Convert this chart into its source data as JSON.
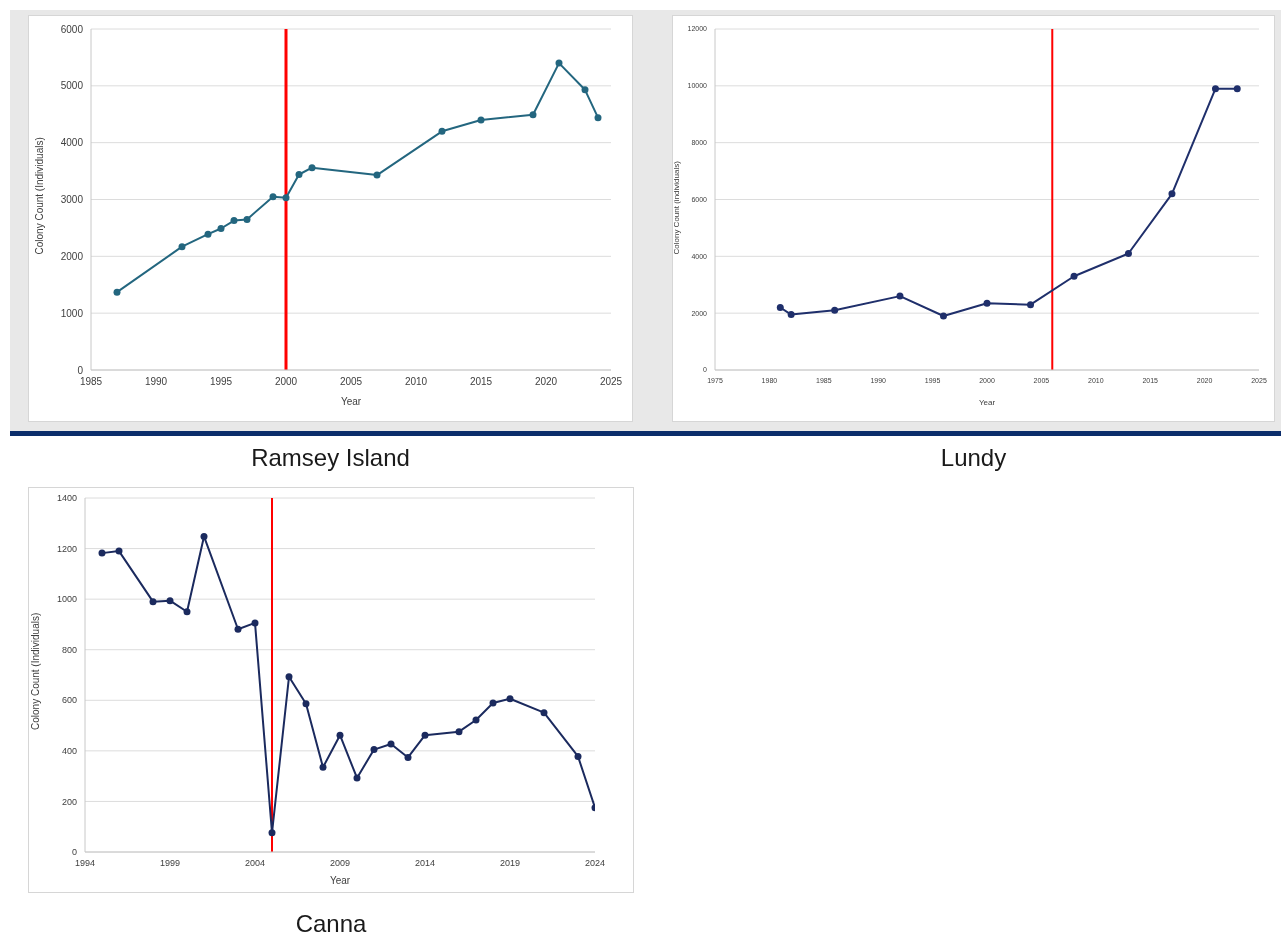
{
  "chart_data": [
    {
      "type": "line",
      "title": "Ramsey Island",
      "xlabel": "Year",
      "ylabel": "Colony Count (Individuals)",
      "marker": "circle",
      "grid": "y",
      "x": [
        1987,
        1992,
        1994,
        1995,
        1996,
        1997,
        1999,
        2000,
        2001,
        2002,
        2007,
        2012,
        2015,
        2019,
        2021,
        2023,
        2024
      ],
      "series": [
        {
          "color": "#23667f",
          "values": [
            1370,
            2170,
            2390,
            2490,
            2630,
            2650,
            3050,
            3030,
            3440,
            3560,
            3430,
            4200,
            4400,
            4490,
            5400,
            4930,
            4440
          ]
        }
      ],
      "xlim": [
        1985,
        2025
      ],
      "xticks": [
        1985,
        1990,
        1995,
        2000,
        2005,
        2010,
        2015,
        2020,
        2025
      ],
      "ylim": [
        0,
        6000
      ],
      "yticks": [
        0,
        1000,
        2000,
        3000,
        4000,
        5000,
        6000
      ],
      "ref_lines": [
        {
          "axis": "x",
          "value": 2000,
          "color": "#ff0000"
        }
      ]
    },
    {
      "type": "line",
      "title": "Lundy",
      "xlabel": "Year",
      "ylabel": "Colony Count (individuals)",
      "marker": "circle",
      "grid": "y",
      "x": [
        1981,
        1982,
        1986,
        1992,
        1996,
        2000,
        2004,
        2008,
        2013,
        2017,
        2021,
        2023
      ],
      "series": [
        {
          "color": "#1f2f6b",
          "values": [
            2200,
            1950,
            2100,
            2600,
            1900,
            2350,
            2300,
            3300,
            4100,
            6200,
            9900,
            9900
          ]
        }
      ],
      "xlim": [
        1975,
        2025
      ],
      "xticks": [
        1975,
        1980,
        1985,
        1990,
        1995,
        2000,
        2005,
        2010,
        2015,
        2020,
        2025
      ],
      "ylim": [
        0,
        12000
      ],
      "yticks": [
        0,
        2000,
        4000,
        6000,
        8000,
        10000,
        12000
      ],
      "ref_lines": [
        {
          "axis": "x",
          "value": 2006,
          "color": "#ff0000"
        }
      ]
    },
    {
      "type": "line",
      "title": "Canna",
      "xlabel": "Year",
      "ylabel": "Colony Count (Individuals)",
      "marker": "circle",
      "grid": "y",
      "x": [
        1995,
        1996,
        1998,
        1999,
        2000,
        2001,
        2003,
        2004,
        2005,
        2006,
        2007,
        2008,
        2009,
        2010,
        2011,
        2012,
        2013,
        2014,
        2016,
        2017,
        2018,
        2019,
        2021,
        2023,
        2024
      ],
      "series": [
        {
          "color": "#1b2a5e",
          "values": [
            1182,
            1190,
            990,
            994,
            950,
            1248,
            881,
            906,
            76,
            693,
            586,
            335,
            462,
            293,
            405,
            427,
            374,
            462,
            476,
            522,
            589,
            606,
            551,
            378,
            175
          ]
        }
      ],
      "xlim": [
        1994,
        2024
      ],
      "xticks": [
        1994,
        1999,
        2004,
        2009,
        2014,
        2019,
        2024
      ],
      "ylim": [
        0,
        1400
      ],
      "yticks": [
        0,
        200,
        400,
        600,
        800,
        1000,
        1200,
        1400
      ],
      "ref_lines": [
        {
          "axis": "x",
          "value": 2005,
          "color": "#ff0000"
        }
      ]
    }
  ]
}
